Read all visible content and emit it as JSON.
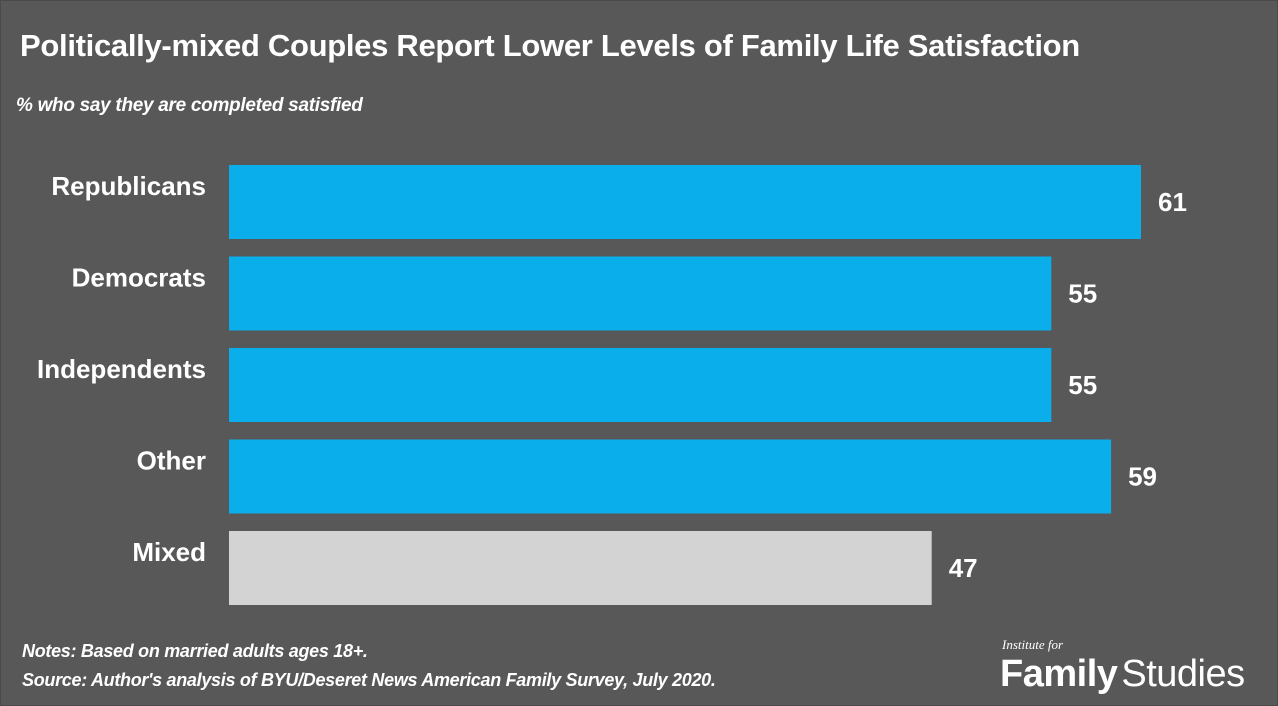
{
  "title": "Politically-mixed  Couples  Report Lower Levels of Family Life Satisfaction",
  "subtitle": "% who say they are completed satisfied",
  "notes": {
    "line1": "Notes: Based on married adults ages 18+.",
    "line2": "Source: Author's analysis of  BYU/Deseret News American Family Survey, July 2020."
  },
  "logo": {
    "small": "Institute for",
    "family": "Family",
    "studies": "Studies"
  },
  "colors": {
    "background": "#585858",
    "primary_bar": "#0aaeea",
    "highlight_bar": "#d4d3d4",
    "text": "#ffffff"
  },
  "chart_data": {
    "type": "bar",
    "orientation": "horizontal",
    "title": "Politically-mixed  Couples  Report Lower Levels of Family Life Satisfaction",
    "subtitle": "% who say they are completed satisfied",
    "categories": [
      "Republicans",
      "Democrats",
      "Independents",
      "Other",
      "Mixed"
    ],
    "values": [
      61,
      55,
      55,
      59,
      47
    ],
    "bar_colors": [
      "#0aaeea",
      "#0aaeea",
      "#0aaeea",
      "#0aaeea",
      "#d4d3d4"
    ],
    "data_labels": true,
    "xlim": [
      0,
      61
    ],
    "grid": false,
    "legend": "none"
  }
}
